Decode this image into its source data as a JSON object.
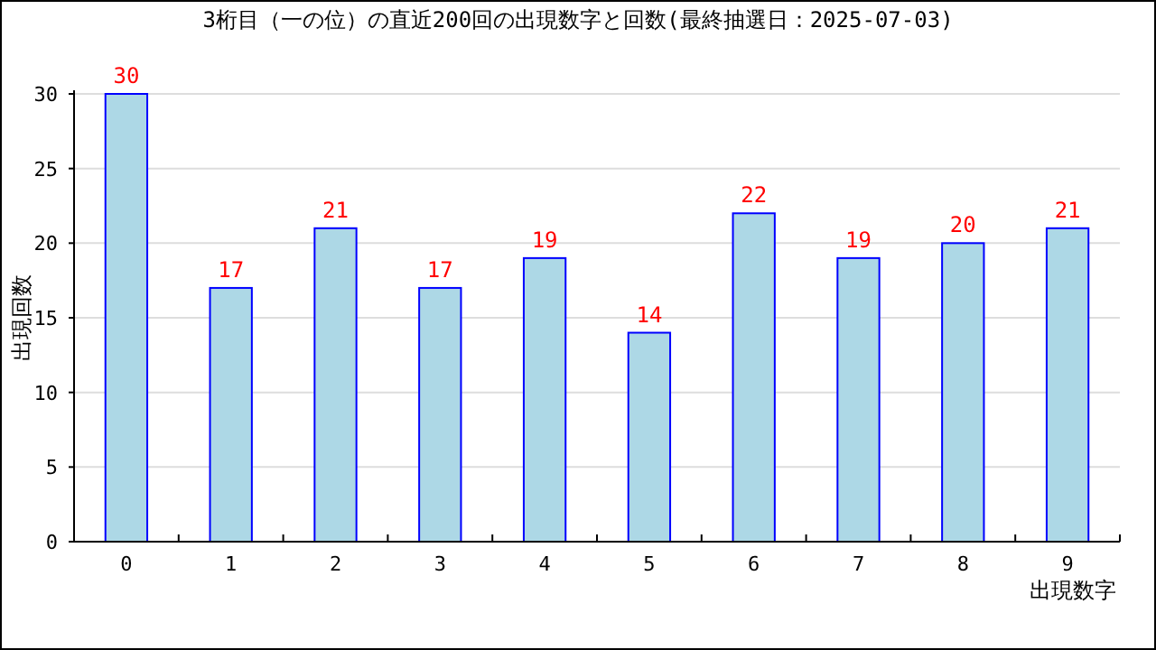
{
  "chart_data": {
    "type": "bar",
    "title": "3桁目（一の位）の直近200回の出現数字と回数(最終抽選日：2025-07-03)",
    "xlabel": "出現数字",
    "ylabel": "出現回数",
    "categories": [
      "0",
      "1",
      "2",
      "3",
      "4",
      "5",
      "6",
      "7",
      "8",
      "9"
    ],
    "values": [
      30,
      17,
      21,
      17,
      19,
      14,
      22,
      19,
      20,
      21
    ],
    "color": "#add8e6",
    "ylim": [
      0,
      30
    ],
    "yticks": [
      0,
      5,
      10,
      15,
      20,
      25,
      30
    ],
    "grid": "y",
    "data_labels": true
  }
}
